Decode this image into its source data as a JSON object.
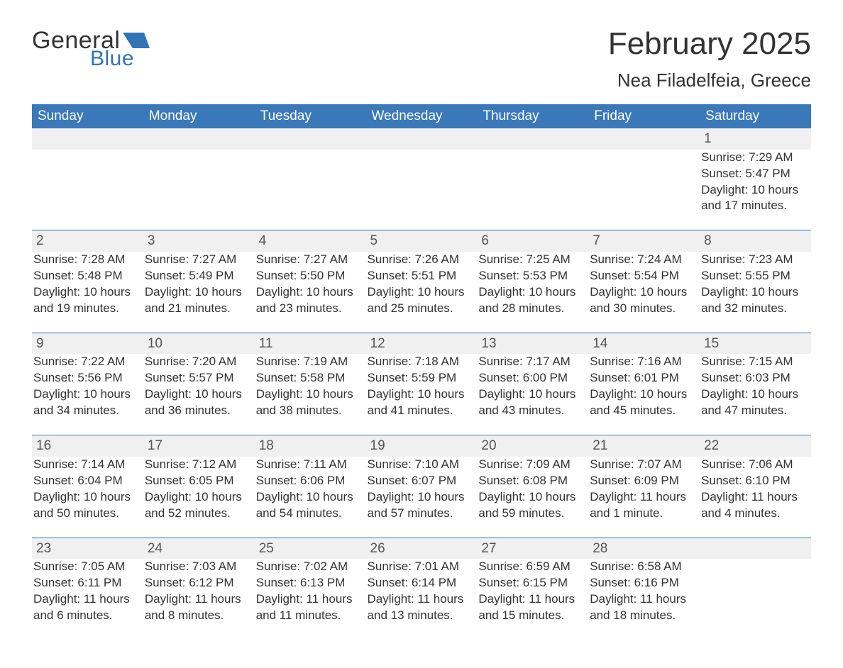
{
  "brand": {
    "text_general": "General",
    "text_blue": "Blue",
    "flag_color": "#2f74b5"
  },
  "header": {
    "month_title": "February 2025",
    "location": "Nea Filadelfeia, Greece"
  },
  "colors": {
    "header_bg": "#3a78b9",
    "header_text": "#ffffff",
    "daynum_bg": "#f0f0f0",
    "divider": "#3a78b9",
    "text": "#333333",
    "page_bg": "#ffffff"
  },
  "day_headers": [
    "Sunday",
    "Monday",
    "Tuesday",
    "Wednesday",
    "Thursday",
    "Friday",
    "Saturday"
  ],
  "weeks": [
    {
      "days": [
        null,
        null,
        null,
        null,
        null,
        null,
        {
          "n": "1",
          "sunrise": "Sunrise: 7:29 AM",
          "sunset": "Sunset: 5:47 PM",
          "daylight1": "Daylight: 10 hours",
          "daylight2": "and 17 minutes."
        }
      ]
    },
    {
      "days": [
        {
          "n": "2",
          "sunrise": "Sunrise: 7:28 AM",
          "sunset": "Sunset: 5:48 PM",
          "daylight1": "Daylight: 10 hours",
          "daylight2": "and 19 minutes."
        },
        {
          "n": "3",
          "sunrise": "Sunrise: 7:27 AM",
          "sunset": "Sunset: 5:49 PM",
          "daylight1": "Daylight: 10 hours",
          "daylight2": "and 21 minutes."
        },
        {
          "n": "4",
          "sunrise": "Sunrise: 7:27 AM",
          "sunset": "Sunset: 5:50 PM",
          "daylight1": "Daylight: 10 hours",
          "daylight2": "and 23 minutes."
        },
        {
          "n": "5",
          "sunrise": "Sunrise: 7:26 AM",
          "sunset": "Sunset: 5:51 PM",
          "daylight1": "Daylight: 10 hours",
          "daylight2": "and 25 minutes."
        },
        {
          "n": "6",
          "sunrise": "Sunrise: 7:25 AM",
          "sunset": "Sunset: 5:53 PM",
          "daylight1": "Daylight: 10 hours",
          "daylight2": "and 28 minutes."
        },
        {
          "n": "7",
          "sunrise": "Sunrise: 7:24 AM",
          "sunset": "Sunset: 5:54 PM",
          "daylight1": "Daylight: 10 hours",
          "daylight2": "and 30 minutes."
        },
        {
          "n": "8",
          "sunrise": "Sunrise: 7:23 AM",
          "sunset": "Sunset: 5:55 PM",
          "daylight1": "Daylight: 10 hours",
          "daylight2": "and 32 minutes."
        }
      ]
    },
    {
      "days": [
        {
          "n": "9",
          "sunrise": "Sunrise: 7:22 AM",
          "sunset": "Sunset: 5:56 PM",
          "daylight1": "Daylight: 10 hours",
          "daylight2": "and 34 minutes."
        },
        {
          "n": "10",
          "sunrise": "Sunrise: 7:20 AM",
          "sunset": "Sunset: 5:57 PM",
          "daylight1": "Daylight: 10 hours",
          "daylight2": "and 36 minutes."
        },
        {
          "n": "11",
          "sunrise": "Sunrise: 7:19 AM",
          "sunset": "Sunset: 5:58 PM",
          "daylight1": "Daylight: 10 hours",
          "daylight2": "and 38 minutes."
        },
        {
          "n": "12",
          "sunrise": "Sunrise: 7:18 AM",
          "sunset": "Sunset: 5:59 PM",
          "daylight1": "Daylight: 10 hours",
          "daylight2": "and 41 minutes."
        },
        {
          "n": "13",
          "sunrise": "Sunrise: 7:17 AM",
          "sunset": "Sunset: 6:00 PM",
          "daylight1": "Daylight: 10 hours",
          "daylight2": "and 43 minutes."
        },
        {
          "n": "14",
          "sunrise": "Sunrise: 7:16 AM",
          "sunset": "Sunset: 6:01 PM",
          "daylight1": "Daylight: 10 hours",
          "daylight2": "and 45 minutes."
        },
        {
          "n": "15",
          "sunrise": "Sunrise: 7:15 AM",
          "sunset": "Sunset: 6:03 PM",
          "daylight1": "Daylight: 10 hours",
          "daylight2": "and 47 minutes."
        }
      ]
    },
    {
      "days": [
        {
          "n": "16",
          "sunrise": "Sunrise: 7:14 AM",
          "sunset": "Sunset: 6:04 PM",
          "daylight1": "Daylight: 10 hours",
          "daylight2": "and 50 minutes."
        },
        {
          "n": "17",
          "sunrise": "Sunrise: 7:12 AM",
          "sunset": "Sunset: 6:05 PM",
          "daylight1": "Daylight: 10 hours",
          "daylight2": "and 52 minutes."
        },
        {
          "n": "18",
          "sunrise": "Sunrise: 7:11 AM",
          "sunset": "Sunset: 6:06 PM",
          "daylight1": "Daylight: 10 hours",
          "daylight2": "and 54 minutes."
        },
        {
          "n": "19",
          "sunrise": "Sunrise: 7:10 AM",
          "sunset": "Sunset: 6:07 PM",
          "daylight1": "Daylight: 10 hours",
          "daylight2": "and 57 minutes."
        },
        {
          "n": "20",
          "sunrise": "Sunrise: 7:09 AM",
          "sunset": "Sunset: 6:08 PM",
          "daylight1": "Daylight: 10 hours",
          "daylight2": "and 59 minutes."
        },
        {
          "n": "21",
          "sunrise": "Sunrise: 7:07 AM",
          "sunset": "Sunset: 6:09 PM",
          "daylight1": "Daylight: 11 hours",
          "daylight2": "and 1 minute."
        },
        {
          "n": "22",
          "sunrise": "Sunrise: 7:06 AM",
          "sunset": "Sunset: 6:10 PM",
          "daylight1": "Daylight: 11 hours",
          "daylight2": "and 4 minutes."
        }
      ]
    },
    {
      "days": [
        {
          "n": "23",
          "sunrise": "Sunrise: 7:05 AM",
          "sunset": "Sunset: 6:11 PM",
          "daylight1": "Daylight: 11 hours",
          "daylight2": "and 6 minutes."
        },
        {
          "n": "24",
          "sunrise": "Sunrise: 7:03 AM",
          "sunset": "Sunset: 6:12 PM",
          "daylight1": "Daylight: 11 hours",
          "daylight2": "and 8 minutes."
        },
        {
          "n": "25",
          "sunrise": "Sunrise: 7:02 AM",
          "sunset": "Sunset: 6:13 PM",
          "daylight1": "Daylight: 11 hours",
          "daylight2": "and 11 minutes."
        },
        {
          "n": "26",
          "sunrise": "Sunrise: 7:01 AM",
          "sunset": "Sunset: 6:14 PM",
          "daylight1": "Daylight: 11 hours",
          "daylight2": "and 13 minutes."
        },
        {
          "n": "27",
          "sunrise": "Sunrise: 6:59 AM",
          "sunset": "Sunset: 6:15 PM",
          "daylight1": "Daylight: 11 hours",
          "daylight2": "and 15 minutes."
        },
        {
          "n": "28",
          "sunrise": "Sunrise: 6:58 AM",
          "sunset": "Sunset: 6:16 PM",
          "daylight1": "Daylight: 11 hours",
          "daylight2": "and 18 minutes."
        },
        null
      ]
    }
  ]
}
